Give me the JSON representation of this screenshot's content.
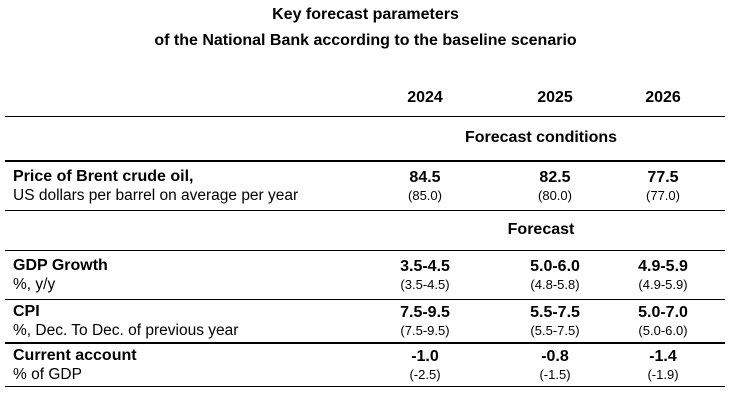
{
  "chart_data": {
    "type": "table",
    "title": "Key forecast parameters",
    "subtitle": "of the National Bank according to the baseline scenario",
    "columns": [
      "2024",
      "2025",
      "2026"
    ],
    "note_format": "bold value = current forecast, value in parentheses = previous forecast",
    "sections": [
      {
        "header": "Forecast conditions",
        "rows": [
          {
            "label": "Price of Brent crude oil,",
            "sublabel": "US dollars per barrel on average per year",
            "values": [
              "84.5",
              "82.5",
              "77.5"
            ],
            "previous_values": [
              "(85.0)",
              "(80.0)",
              "(77.0)"
            ]
          }
        ]
      },
      {
        "header": "Forecast",
        "rows": [
          {
            "label": "GDP Growth",
            "sublabel": "%, y/y",
            "values": [
              "3.5-4.5",
              "5.0-6.0",
              "4.9-5.9"
            ],
            "previous_values": [
              "(3.5-4.5)",
              "(4.8-5.8)",
              "(4.9-5.9)"
            ]
          },
          {
            "label": "CPI",
            "sublabel": "%, Dec. To Dec. of previous year",
            "values": [
              "7.5-9.5",
              "5.5-7.5",
              "5.0-7.0"
            ],
            "previous_values": [
              "(7.5-9.5)",
              "(5.5-7.5)",
              "(5.0-6.0)"
            ]
          },
          {
            "label": "Current account",
            "sublabel": "% of GDP",
            "values": [
              "-1.0",
              "-0.8",
              "-1.4"
            ],
            "previous_values": [
              "(-2.5)",
              "(-1.5)",
              "(-1.9)"
            ]
          }
        ]
      }
    ],
    "colors": {
      "text": "#000000",
      "background": "#ffffff",
      "rule": "#000000"
    }
  }
}
